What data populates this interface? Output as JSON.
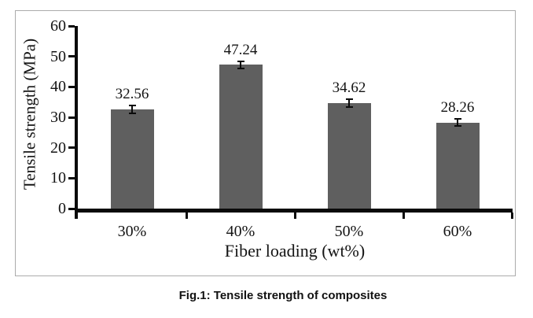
{
  "figure": {
    "caption": "Fig.1: Tensile strength of composites"
  },
  "chart_data": {
    "type": "bar",
    "title": "",
    "categories": [
      "30%",
      "40%",
      "50%",
      "60%"
    ],
    "values": [
      32.56,
      47.24,
      34.62,
      28.26
    ],
    "data_labels": [
      "32.56",
      "47.24",
      "34.62",
      "28.26"
    ],
    "error_bar_value": 1.2,
    "xlabel": "Fiber loading (wt%)",
    "ylabel": "Tensile strength (MPa)",
    "ylim": [
      0,
      60
    ],
    "yticks": [
      0,
      10,
      20,
      30,
      40,
      50,
      60
    ],
    "grid": false,
    "legend": "none",
    "bar_color": "#5f5f5f",
    "axis_color": "#0a0a0a",
    "frame_border_color": "#ababab"
  }
}
